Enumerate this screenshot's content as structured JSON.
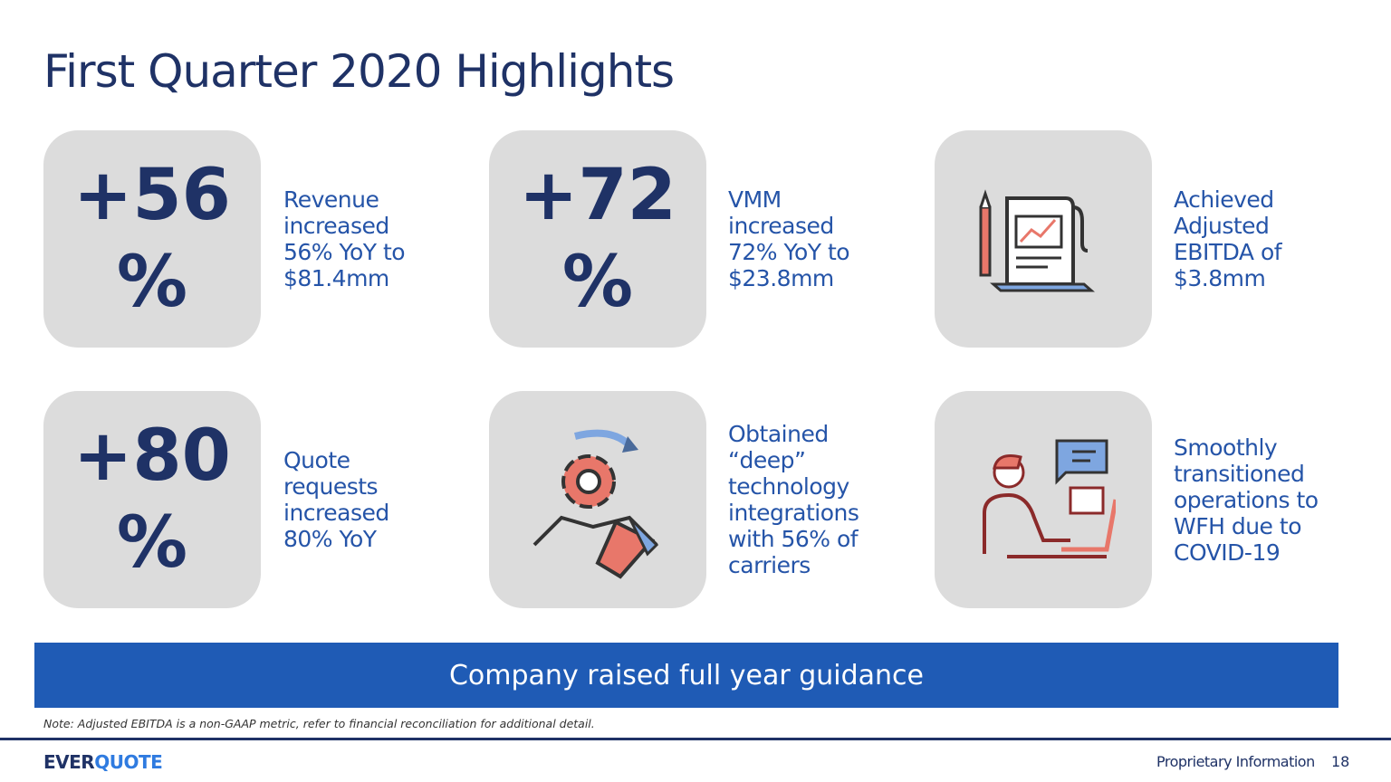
{
  "header": {
    "title": "First Quarter 2020 Highlights"
  },
  "highlights": [
    {
      "stat_lines": [
        "+56",
        "%"
      ],
      "text": "Revenue increased 56% YoY to $81.4mm"
    },
    {
      "stat_lines": [
        "+72",
        "%"
      ],
      "text": "VMM increased 72% YoY to $23.8mm"
    },
    {
      "icon": "report",
      "text": "Achieved Adjusted EBITDA of $3.8mm"
    },
    {
      "stat_lines": [
        "+80",
        "%"
      ],
      "text": "Quote requests increased 80% YoY"
    },
    {
      "icon": "handshake",
      "text": "Obtained “deep” technology integrations with 56% of carriers"
    },
    {
      "icon": "remote-work",
      "text": "Smoothly transitioned operations to WFH due to COVID-19"
    }
  ],
  "banner": "Company raised full year guidance",
  "note": "Note: Adjusted EBITDA is a non-GAAP metric, refer to financial reconciliation for additional detail.",
  "footer": {
    "logo": [
      "EVER",
      "QUOTE"
    ],
    "label": "Proprietary Information",
    "page": "18"
  }
}
